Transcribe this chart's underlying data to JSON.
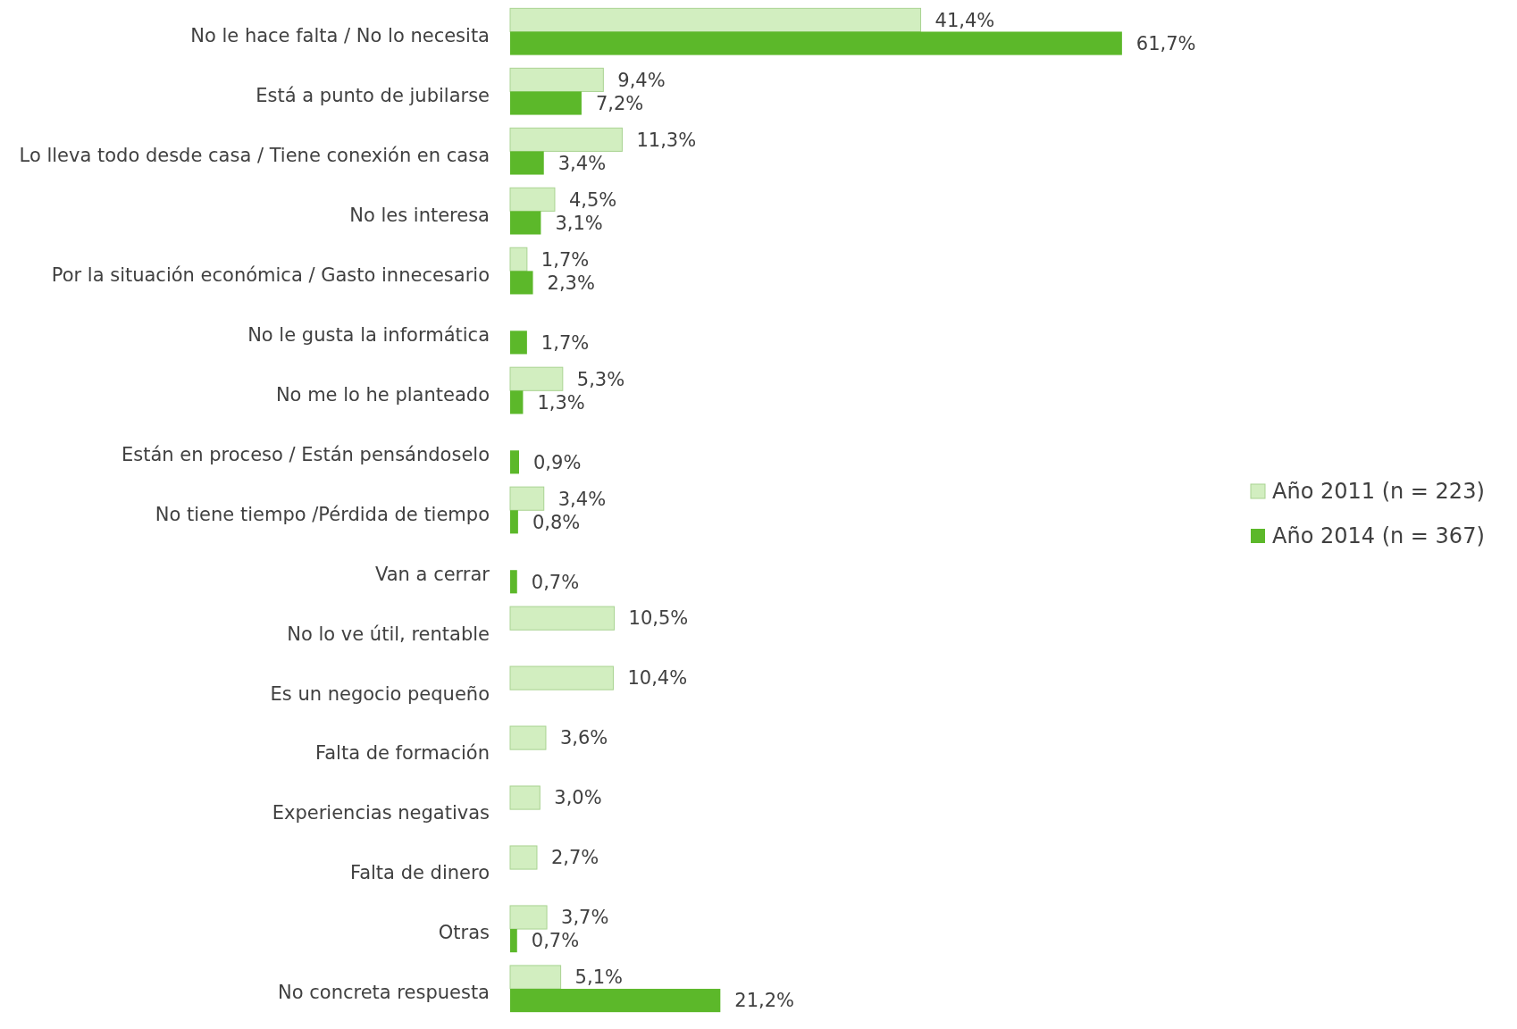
{
  "chart_data": {
    "type": "bar",
    "orientation": "horizontal",
    "legend": "right",
    "categories": [
      "No le hace falta / No lo necesita",
      "Está a punto de jubilarse",
      "Lo lleva todo desde casa / Tiene conexión en casa",
      "No les interesa",
      "Por la situación económica / Gasto innecesario",
      "No le gusta la informática",
      "No me lo he planteado",
      "Están en proceso / Están pensándoselo",
      "No tiene tiempo /Pérdida de tiempo",
      "Van a cerrar",
      "No lo ve útil, rentable",
      "Es un negocio pequeño",
      "Falta de formación",
      "Experiencias negativas",
      "Falta de dinero",
      "Otras",
      "No concreta respuesta"
    ],
    "series": [
      {
        "name": "Año 2011 (n = 223)",
        "color": "#d2eec0",
        "values": [
          41.4,
          9.4,
          11.3,
          4.5,
          1.7,
          null,
          5.3,
          null,
          3.4,
          null,
          10.5,
          10.4,
          3.6,
          3.0,
          2.7,
          3.7,
          5.1
        ],
        "value_labels": [
          "41,4%",
          "9,4%",
          "11,3%",
          "4,5%",
          "1,7%",
          null,
          "5,3%",
          null,
          "3,4%",
          null,
          "10,5%",
          "10,4%",
          "3,6%",
          "3,0%",
          "2,7%",
          "3,7%",
          "5,1%"
        ]
      },
      {
        "name": "Año 2014 (n = 367)",
        "color": "#5cb82a",
        "values": [
          61.7,
          7.2,
          3.4,
          3.1,
          2.3,
          1.7,
          1.3,
          0.9,
          0.8,
          0.7,
          null,
          null,
          null,
          null,
          null,
          0.7,
          21.2
        ],
        "value_labels": [
          "61,7%",
          "7,2%",
          "3,4%",
          "3,1%",
          "2,3%",
          "1,7%",
          "1,3%",
          "0,9%",
          "0,8%",
          "0,7%",
          null,
          null,
          null,
          null,
          null,
          "0,7%",
          "21,2%"
        ]
      }
    ]
  }
}
